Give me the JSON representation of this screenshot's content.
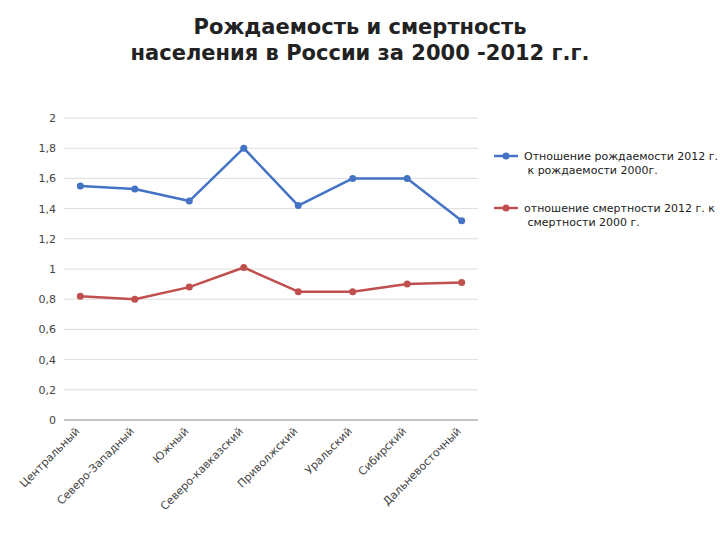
{
  "chart_data": {
    "type": "line",
    "title": "Рождаемость и смертность\nнаселения в России за 2000 -2012 г.г.",
    "categories": [
      "Центральный",
      "Северо-Западный",
      "Южный",
      "Северо-кавказский",
      "Приволжский",
      "Уральский",
      "Сибирский",
      "Дальневосточный"
    ],
    "series": [
      {
        "name": "Отношение рождаемости 2012 г.\n к рождаемости 2000г.",
        "color": "#4472C4",
        "values": [
          1.55,
          1.53,
          1.45,
          1.8,
          1.42,
          1.6,
          1.6,
          1.32
        ]
      },
      {
        "name": "отношение смертности 2012 г. к\n смертности 2000 г.",
        "color": "#C0504D",
        "values": [
          0.82,
          0.8,
          0.88,
          1.01,
          0.85,
          0.85,
          0.9,
          0.91
        ]
      }
    ],
    "ylim": [
      0,
      2.0
    ],
    "yticks": [
      0,
      {
        "value": 0.2,
        "label": "0,2"
      },
      {
        "value": 0.4,
        "label": "0,4"
      },
      {
        "value": 0.6,
        "label": "0,6"
      },
      {
        "value": 0.8,
        "label": "0,8"
      },
      1,
      {
        "value": 1.2,
        "label": "1,2"
      },
      {
        "value": 1.4,
        "label": "1,4"
      },
      {
        "value": 1.6,
        "label": "1,6"
      },
      {
        "value": 1.8,
        "label": "1,8"
      },
      2
    ],
    "grid": true,
    "legend": "right",
    "marker": "circle"
  }
}
